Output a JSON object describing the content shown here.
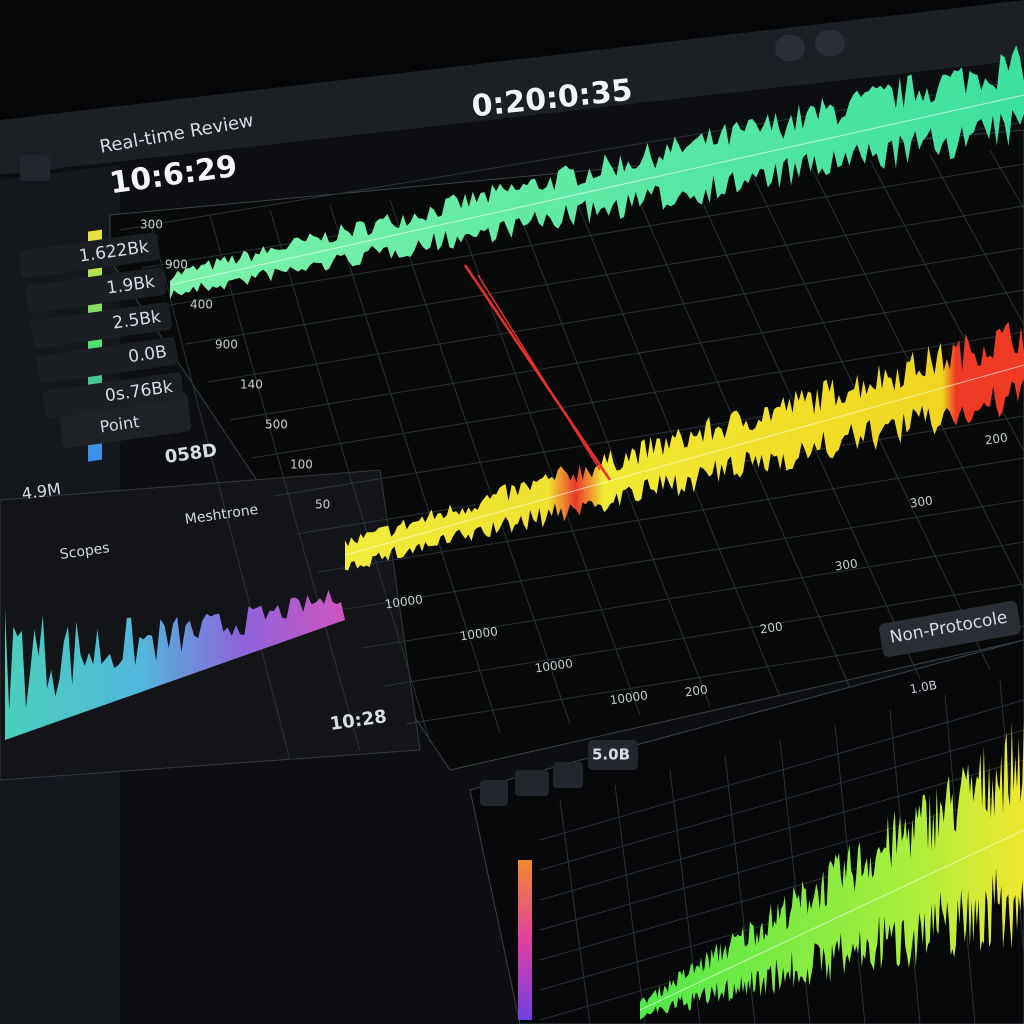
{
  "header": {
    "title": "Real-time Review",
    "time_left": "10:6:29",
    "time_main": "0:20:0:35"
  },
  "readouts": [
    "1.622Bk",
    "1.9Bk",
    "2.5Bk",
    "0.0B",
    "0s.76Bk"
  ],
  "button": "Point",
  "level": "058D",
  "level_left": "4.9M",
  "spectrum": {
    "title": "Scopes",
    "subtitle": "Meshtrone",
    "clock": "10:28"
  },
  "main_axis": {
    "y_labels": [
      "300",
      "900",
      "400",
      "900",
      "140",
      "500",
      "100",
      "50"
    ],
    "x_labels": [
      "10000",
      "10000",
      "10000",
      "10000",
      "200",
      "200",
      "300",
      "300",
      "200"
    ]
  },
  "badge": "Non-Protocole",
  "gain": "5.0B",
  "lower_label": "1.0B"
}
